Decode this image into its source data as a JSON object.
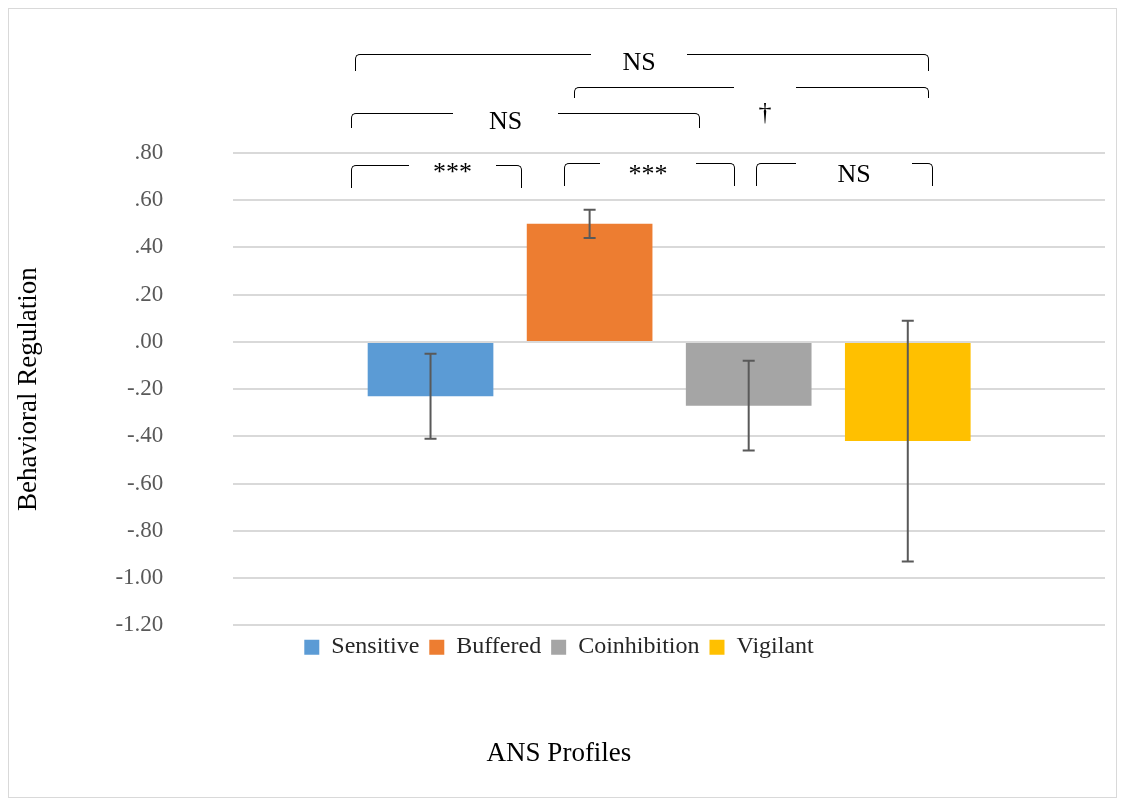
{
  "chart_data": {
    "type": "bar",
    "ylabel": "Behavioral Regulation",
    "xlabel": "ANS Profiles",
    "categories": [
      null
    ],
    "series": [
      {
        "name": "Sensitive",
        "color": "#5b9bd5",
        "values": [
          -0.23
        ],
        "errors": [
          0.18
        ]
      },
      {
        "name": "Buffered",
        "color": "#ed7d31",
        "values": [
          0.5
        ],
        "errors": [
          0.06
        ]
      },
      {
        "name": "Coinhibition",
        "color": "#a5a5a5",
        "values": [
          -0.27
        ],
        "errors": [
          0.19
        ]
      },
      {
        "name": "Vigilant",
        "color": "#ffc000",
        "values": [
          -0.42
        ],
        "errors": [
          0.51
        ]
      }
    ],
    "ylim": [
      -1.2,
      0.8
    ],
    "yticks": [
      {
        "value": -1.2,
        "label": "-1.20"
      },
      {
        "value": -1.0,
        "label": "-1.00"
      },
      {
        "value": -0.8,
        "label": "-.80"
      },
      {
        "value": -0.6,
        "label": "-.60"
      },
      {
        "value": -0.4,
        "label": "-.40"
      },
      {
        "value": -0.2,
        "label": "-.20"
      },
      {
        "value": 0,
        "label": ".00"
      },
      {
        "value": 0.2,
        "label": ".20"
      },
      {
        "value": 0.4,
        "label": ".40"
      },
      {
        "value": 0.6,
        "label": ".60"
      },
      {
        "value": 0.8,
        "label": ".80"
      }
    ],
    "grid": "y",
    "legend": "bottom",
    "annotations": [
      "NS",
      "†",
      "NS",
      "***",
      "***",
      "NS"
    ]
  }
}
